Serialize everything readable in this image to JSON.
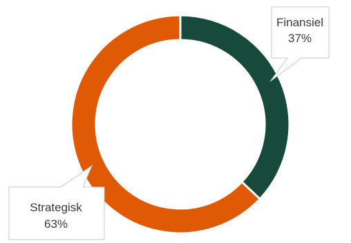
{
  "chart_data": {
    "type": "pie",
    "variant": "donut",
    "title": "",
    "slices": [
      {
        "label": "Finansiel",
        "value": 37,
        "value_label": "37%",
        "color": "#174a3a"
      },
      {
        "label": "Strategisk",
        "value": 63,
        "value_label": "63%",
        "color": "#e05a06"
      }
    ],
    "start_angle_deg": 0,
    "direction": "clockwise",
    "legend": "none",
    "data_labels": "callouts"
  }
}
